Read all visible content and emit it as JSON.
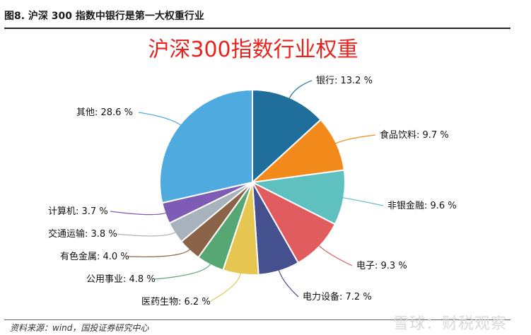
{
  "caption": "图8. 沪深 300 指数中银行是第一大权重行业",
  "source": "资料来源：wind，国投证券研究中心",
  "watermark": "雪球：财税观察",
  "chart_data": {
    "type": "pie",
    "title": "沪深300指数行业权重",
    "slices": [
      {
        "label": "银行",
        "value": 13.2,
        "display": "银行: 13.2 %",
        "color": "#1f6e9c"
      },
      {
        "label": "食品饮料",
        "value": 9.7,
        "display": "食品饮料: 9.7 %",
        "color": "#f28a1c"
      },
      {
        "label": "非银金融",
        "value": 9.6,
        "display": "非银金融: 9.6 %",
        "color": "#5fc0c0"
      },
      {
        "label": "电子",
        "value": 9.3,
        "display": "电子: 9.3 %",
        "color": "#e05c5f"
      },
      {
        "label": "电力设备",
        "value": 7.2,
        "display": "电力设备: 7.2 %",
        "color": "#45508f"
      },
      {
        "label": "医药生物",
        "value": 6.2,
        "display": "医药生物: 6.2 %",
        "color": "#e6c550"
      },
      {
        "label": "公用事业",
        "value": 4.8,
        "display": "公用事业: 4.8 %",
        "color": "#57a775"
      },
      {
        "label": "有色金属",
        "value": 4.0,
        "display": "有色金属: 4.0 %",
        "color": "#8a6348"
      },
      {
        "label": "交通运输",
        "value": 3.8,
        "display": "交通运输: 3.8 %",
        "color": "#a8b2bc"
      },
      {
        "label": "计算机",
        "value": 3.7,
        "display": "计算机: 3.7 %",
        "color": "#7e5cb5"
      },
      {
        "label": "其他",
        "value": 28.6,
        "display": "其他: 28.6 %",
        "color": "#4eaadf"
      }
    ]
  }
}
